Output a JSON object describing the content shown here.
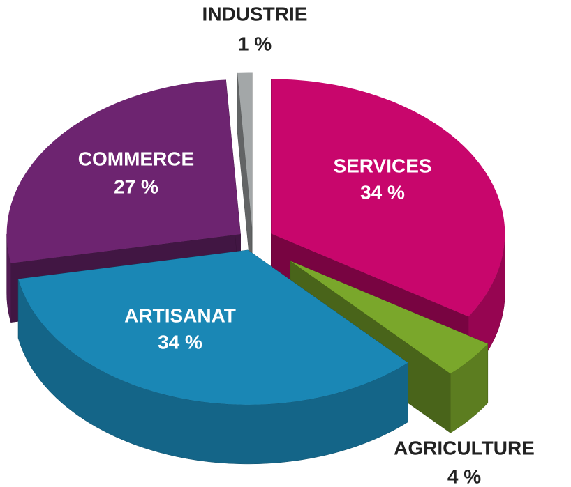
{
  "chart_data": {
    "type": "pie",
    "categories": [
      "INDUSTRIE",
      "SERVICES",
      "AGRICULTURE",
      "ARTISANAT",
      "COMMERCE"
    ],
    "values": [
      1,
      34,
      4,
      34,
      27
    ],
    "value_labels": [
      "1 %",
      "34 %",
      "4 %",
      "34 %",
      "27 %"
    ],
    "colors": [
      "#a3a7a8",
      "#c8066c",
      "#7aa72b",
      "#1a87b5",
      "#6d2470"
    ]
  }
}
